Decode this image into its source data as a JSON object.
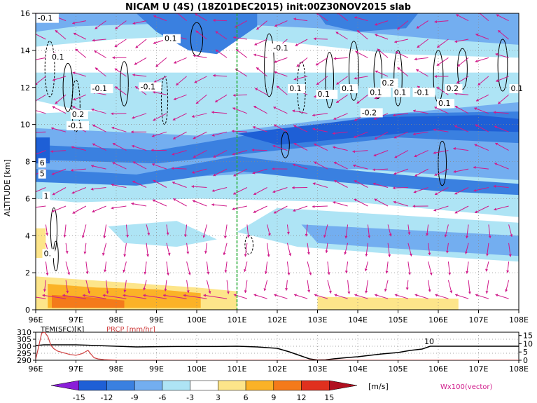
{
  "chart_data": [
    {
      "type": "heatmap",
      "title": "NICAM U (4S) (18Z01DEC2015) init:00Z30NOV2015 slab",
      "ylabel": "ALTITUDE [km]",
      "x_ticks": [
        "96E",
        "97E",
        "98E",
        "99E",
        "100E",
        "101E",
        "102E",
        "103E",
        "104E",
        "105E",
        "106E",
        "107E",
        "108E"
      ],
      "x_range": [
        96,
        108
      ],
      "y_ticks": [
        "0",
        "2",
        "4",
        "6",
        "8",
        "10",
        "12",
        "14",
        "16"
      ],
      "y_range": [
        0,
        16
      ],
      "grid": "dotted",
      "marker_longitude": 101,
      "colors": {
        "neg15": "#8a1fd8",
        "neg12": "#1e5fd6",
        "neg9": "#3a80e0",
        "neg6": "#73aef0",
        "neg3": "#aee4f5",
        "zero": "#ffffff",
        "pos3": "#fde58a",
        "pos6": "#fbb227",
        "pos9": "#f47a1a",
        "pos12": "#e0301e",
        "pos15": "#b01020",
        "vector": "#d01a8a",
        "marker": "#22aa33"
      },
      "contour_labels": [
        "-0.1",
        "0.1",
        "0.1",
        "-0.1",
        "0.2",
        "-0.1",
        "-0.1",
        "0.1",
        "0.1",
        "0.1",
        "-0.1",
        "0.2",
        "0.1",
        "-0.2",
        "0.1",
        "0.1",
        "-0.1",
        "0.2",
        "0.1",
        "0.1",
        "-0.1",
        "6",
        "5",
        "1",
        "0."
      ],
      "vector_label": "Wx100(vector)"
    },
    {
      "type": "line",
      "left_label": "TEM(SFC)[K]",
      "right_label": "PRCP [mm/hr]",
      "left_ticks": [
        "310",
        "305",
        "300",
        "295",
        "290"
      ],
      "left_range": [
        290,
        310
      ],
      "right_ticks": [
        "15",
        "10",
        "5",
        "0"
      ],
      "right_range": [
        0,
        17
      ],
      "annotation": "10",
      "series": [
        {
          "name": "TEM(SFC)[K]",
          "color": "#000000",
          "x": [
            96.0,
            96.2,
            96.5,
            97.0,
            97.5,
            98.0,
            98.5,
            99.0,
            99.5,
            100.0,
            100.5,
            101.0,
            101.5,
            102.0,
            102.3,
            102.6,
            102.8,
            103.0,
            103.2,
            103.4,
            103.7,
            104.0,
            104.3,
            104.6,
            105.0,
            105.3,
            105.6,
            105.8,
            106.0,
            106.5,
            107.0,
            107.5,
            108.0
          ],
          "values": [
            300.5,
            301.0,
            301.0,
            301.0,
            300.5,
            300.0,
            299.5,
            299.7,
            299.8,
            299.8,
            299.8,
            300.0,
            299.5,
            298.5,
            296.0,
            293.0,
            291.0,
            290.2,
            290.3,
            291.0,
            291.8,
            292.5,
            293.5,
            294.5,
            295.5,
            297.0,
            298.0,
            300.0,
            300.0,
            300.0,
            300.0,
            300.0,
            300.0
          ]
        },
        {
          "name": "PRCP [mm/hr]",
          "color": "#d04040",
          "x": [
            96.0,
            96.08,
            96.15,
            96.22,
            96.3,
            96.38,
            96.45,
            96.55,
            96.7,
            96.85,
            97.0,
            97.15,
            97.3,
            97.38,
            97.45,
            97.55,
            97.7,
            97.85,
            98.0,
            98.5,
            99.0,
            100.0,
            101.0,
            102.0,
            103.0,
            104.0,
            105.0,
            106.0,
            107.0,
            108.0
          ],
          "values": [
            0.5,
            9.0,
            16.5,
            17.0,
            14.5,
            9.0,
            7.0,
            5.5,
            4.5,
            3.5,
            3.0,
            4.0,
            6.0,
            3.5,
            1.5,
            0.8,
            0.4,
            0.2,
            0.1,
            0.0,
            0.0,
            0.0,
            0.0,
            0.0,
            0.0,
            0.0,
            0.0,
            0.0,
            0.0,
            0.0
          ]
        }
      ]
    },
    {
      "type": "bar",
      "title": "",
      "categories": [
        "-15",
        "-12",
        "-9",
        "-6",
        "-3",
        "3",
        "6",
        "9",
        "12",
        "15"
      ],
      "unit": "[m/s]",
      "values": [
        -15,
        -12,
        -9,
        -6,
        -3,
        3,
        6,
        9,
        12,
        15
      ]
    }
  ]
}
